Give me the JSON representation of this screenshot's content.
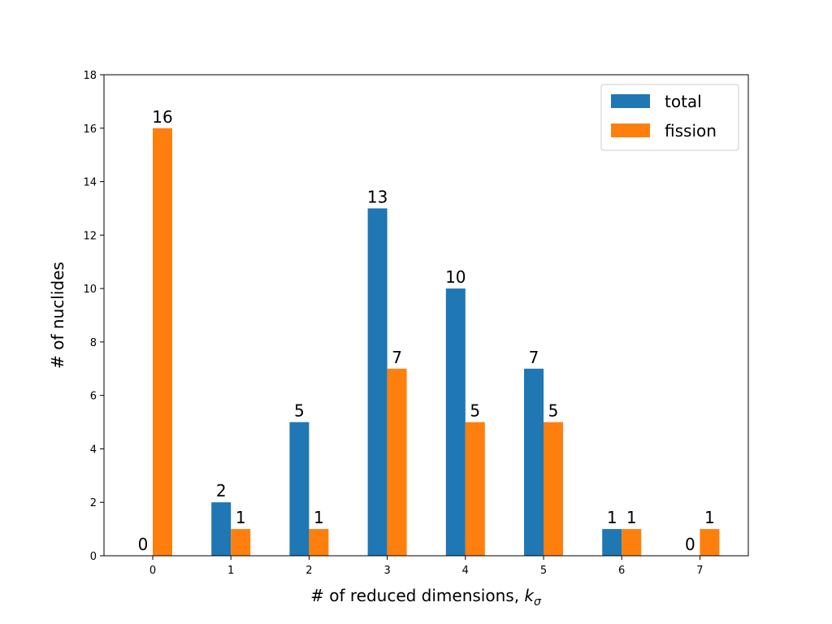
{
  "chart_data": {
    "type": "bar",
    "title": "",
    "xlabel": "# of reduced dimensions, ",
    "xlabel_symbol": "k",
    "xlabel_subscript": "σ",
    "ylabel": "# of nuclides",
    "categories": [
      "0",
      "1",
      "2",
      "3",
      "4",
      "5",
      "6",
      "7"
    ],
    "series": [
      {
        "name": "total",
        "values": [
          0,
          2,
          5,
          13,
          10,
          7,
          1,
          0
        ],
        "color": "#1f77b4"
      },
      {
        "name": "fission",
        "values": [
          16,
          1,
          1,
          7,
          5,
          5,
          1,
          1
        ],
        "color": "#ff7f0e"
      }
    ],
    "ylim": [
      0,
      18
    ],
    "yticks": [
      0,
      2,
      4,
      6,
      8,
      10,
      12,
      14,
      16,
      18
    ],
    "grid": false,
    "legend_position": "top-right",
    "data_labels": true
  }
}
